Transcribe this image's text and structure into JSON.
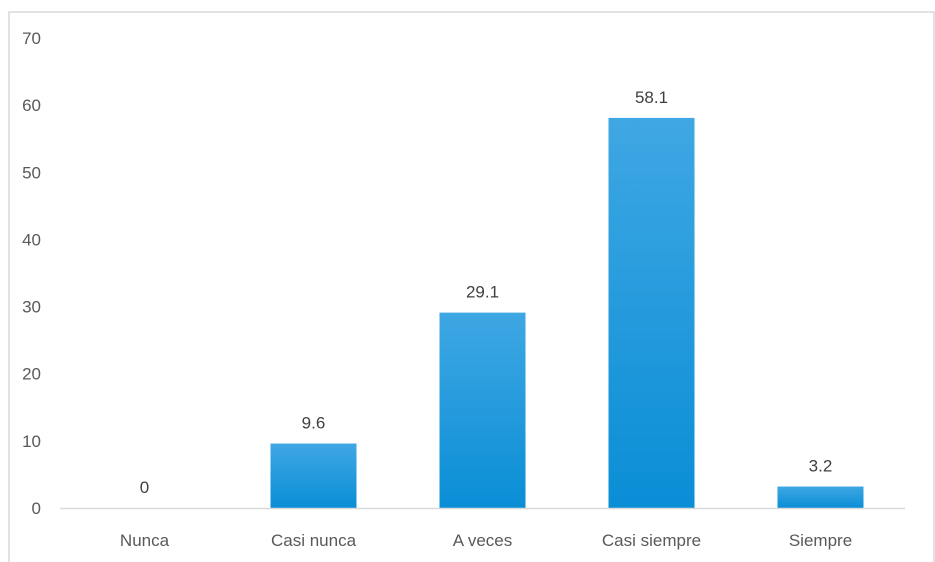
{
  "chart_data": {
    "type": "bar",
    "categories": [
      "Nunca",
      "Casi nunca",
      "A veces",
      "Casi siempre",
      "Siempre"
    ],
    "values": [
      0,
      9.6,
      29.1,
      58.1,
      3.2
    ],
    "data_labels": [
      "0",
      "9.6",
      "29.1",
      "58.1",
      "3.2"
    ],
    "title": "",
    "xlabel": "",
    "ylabel": "",
    "ylim": [
      0,
      70
    ],
    "yticks": [
      0,
      10,
      20,
      30,
      40,
      50,
      60,
      70
    ],
    "ytick_labels": [
      "0",
      "10",
      "20",
      "30",
      "40",
      "50",
      "60",
      "70"
    ],
    "grid": false,
    "legend": "none",
    "colors": {
      "bar_top": "#3fa7e3",
      "bar_bottom": "#0a8ed6",
      "axis": "#d9d9d9",
      "frame": "#d9d9d9",
      "tick_text": "#595959",
      "label_text": "#404040"
    }
  }
}
